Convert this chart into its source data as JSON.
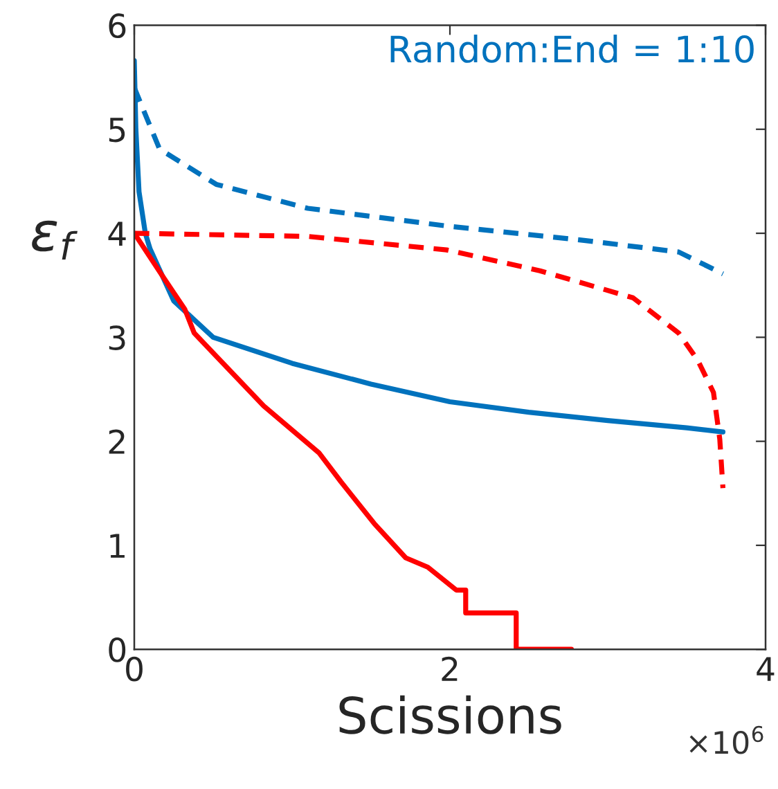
{
  "chart_data": {
    "type": "line",
    "xlabel": "Scissions",
    "ylabel": "ε$_{f}$",
    "annotations": [
      "Random:End = 1:10",
      "×10$^{6}$"
    ],
    "xlim": [
      0,
      4
    ],
    "ylim": [
      0,
      6
    ],
    "xticks": [
      0,
      2,
      4
    ],
    "yticks": [
      0,
      1,
      2,
      3,
      4,
      5,
      6
    ],
    "grid": false,
    "legend": false,
    "series": [
      {
        "color": "#0072bd",
        "line_style": "solid",
        "x": [
          0,
          0.01,
          0.03,
          0.07,
          0.1,
          0.25,
          0.5,
          1,
          1.5,
          2,
          2.5,
          3,
          3.5,
          3.73
        ],
        "values": [
          5.66,
          5.0,
          4.4,
          4.0,
          3.85,
          3.35,
          3.0,
          2.75,
          2.55,
          2.38,
          2.28,
          2.2,
          2.13,
          2.09
        ]
      },
      {
        "color": "#0072bd",
        "line_style": "dashed",
        "x": [
          0,
          0.16,
          0.52,
          1.1,
          1.98,
          2.86,
          3.45,
          3.73
        ],
        "values": [
          5.4,
          4.81,
          4.47,
          4.24,
          4.07,
          3.93,
          3.82,
          3.61
        ]
      },
      {
        "color": "#ff0000",
        "line_style": "dashed",
        "x": [
          0,
          1.1,
          1.98,
          2.57,
          3.16,
          3.45,
          3.57,
          3.67,
          3.71,
          3.73
        ],
        "values": [
          4.0,
          3.97,
          3.84,
          3.64,
          3.38,
          3.04,
          2.78,
          2.47,
          2.02,
          1.55
        ]
      },
      {
        "color": "#ff0000",
        "line_style": "solid",
        "x": [
          0,
          0.17,
          0.32,
          0.38,
          0.82,
          1.17,
          1.31,
          1.52,
          1.72,
          1.86,
          2.04,
          2.1,
          2.1,
          2.42,
          2.42,
          2.77
        ],
        "values": [
          4.0,
          3.61,
          3.27,
          3.04,
          2.34,
          1.89,
          1.61,
          1.21,
          0.88,
          0.79,
          0.57,
          0.57,
          0.35,
          0.35,
          0,
          0
        ]
      }
    ]
  }
}
